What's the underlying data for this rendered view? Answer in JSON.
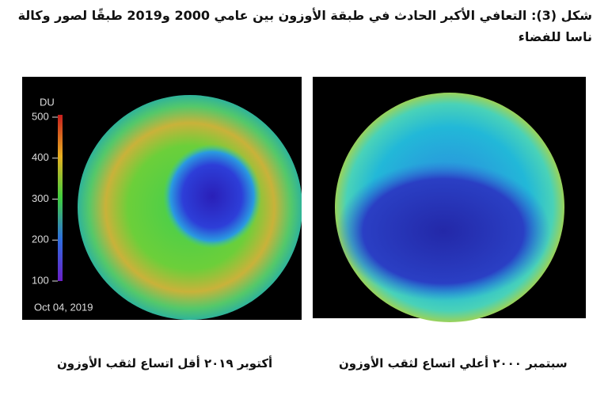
{
  "title": "شكل (3): التعافي الأكبر الحادث في طبقة الأوزون بين عامي 2000 و2019 طبقًا لصور وكالة ناسا للفضاء",
  "left_image": {
    "unit": "DU",
    "scale_ticks": [
      100,
      200,
      300,
      400,
      500
    ],
    "scale_range": [
      100,
      500
    ],
    "date": "Oct 04, 2019",
    "caption": "أكتوبر ٢٠١٩ أقل اتساع لثقب الأوزون"
  },
  "right_image": {
    "caption": "سبتمبر ٢٠٠٠ أعلي اتساع لثقب الأوزون"
  }
}
